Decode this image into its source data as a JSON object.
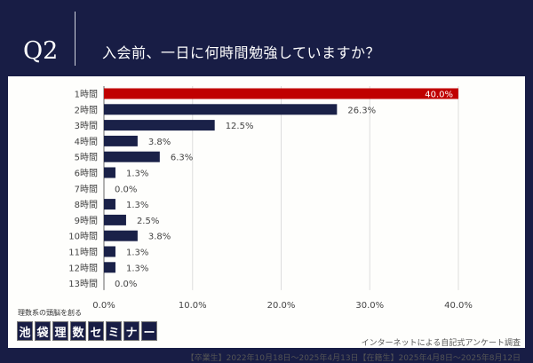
{
  "header": {
    "q_label": "Q2",
    "title": "入会前、一日に何時間勉強していますか？"
  },
  "brand": {
    "tagline": "理数系の頭脳を創る",
    "chars": [
      "池",
      "袋",
      "理",
      "数",
      "セ",
      "ミ",
      "ナ",
      "ー"
    ]
  },
  "footer": {
    "survey": "インターネットによる自記式アンケート調査",
    "period": "【卒業生】2022年10月18日～2025年4月13日【在籍生】2025年4月8日～2025年8月12日"
  },
  "chart_data": {
    "type": "bar",
    "orientation": "horizontal",
    "categories": [
      "1時間",
      "2時間",
      "3時間",
      "4時間",
      "5時間",
      "6時間",
      "7時間",
      "8時間",
      "9時間",
      "10時間",
      "11時間",
      "12時間",
      "13時間"
    ],
    "values": [
      40.0,
      26.3,
      12.5,
      3.8,
      6.3,
      1.3,
      0.0,
      1.3,
      2.5,
      3.8,
      1.3,
      1.3,
      0.0
    ],
    "value_labels": [
      "40.0%",
      "26.3%",
      "12.5%",
      "3.8%",
      "6.3%",
      "1.3%",
      "0.0%",
      "1.3%",
      "2.5%",
      "3.8%",
      "1.3%",
      "1.3%",
      "0.0%"
    ],
    "xlim": [
      0,
      40
    ],
    "xticks": [
      "0.0%",
      "10.0%",
      "20.0%",
      "30.0%",
      "40.0%"
    ],
    "grid": true,
    "colors": {
      "highlight": "#c00000",
      "default": "#1a2148"
    }
  }
}
